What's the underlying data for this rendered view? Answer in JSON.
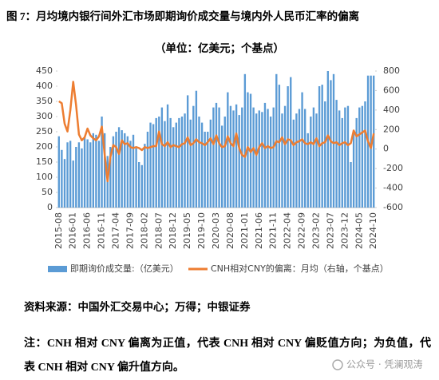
{
  "chart_data": {
    "type": "bar",
    "title": "图 7：月均境内银行间外汇市场即期询价成交量与境内外人民币汇率的偏离",
    "subtitle": "（单位：亿美元；个基点）",
    "categories": [
      "2015-08",
      null,
      null,
      null,
      null,
      "2016-01",
      null,
      null,
      null,
      null,
      "2016-06",
      null,
      null,
      null,
      null,
      "2016-11",
      null,
      null,
      null,
      null,
      "2017-04",
      null,
      null,
      null,
      null,
      "2017-09",
      null,
      null,
      null,
      null,
      "2018-02",
      null,
      null,
      null,
      null,
      "2018-07",
      null,
      null,
      null,
      null,
      "2018-12",
      null,
      null,
      null,
      null,
      "2019-05",
      null,
      null,
      null,
      null,
      "2019-10",
      null,
      null,
      null,
      null,
      "2020-03",
      null,
      null,
      null,
      null,
      "2020-08",
      null,
      null,
      null,
      null,
      "2021-01",
      null,
      null,
      null,
      null,
      "2021-06",
      null,
      null,
      null,
      null,
      "2021-11",
      null,
      null,
      null,
      null,
      "2022-04",
      null,
      null,
      null,
      null,
      "2022-09",
      null,
      null,
      null,
      null,
      "2023-02",
      null,
      null,
      null,
      null,
      "2023-07",
      null,
      null,
      null,
      null,
      "2023-12",
      null,
      null,
      null,
      null,
      "2024-05",
      null,
      null,
      null,
      null,
      "2024-10"
    ],
    "series": [
      {
        "name": "即期询价成交量:（亿美元）",
        "type": "bar",
        "color": "#5b9bd5",
        "values": [
          235,
          190,
          160,
          215,
          220,
          155,
          200,
          215,
          195,
          230,
          225,
          215,
          245,
          240,
          220,
          300,
          245,
          170,
          200,
          235,
          250,
          265,
          255,
          245,
          235,
          220,
          240,
          195,
          150,
          140,
          210,
          250,
          280,
          275,
          295,
          300,
          330,
          285,
          340,
          295,
          265,
          280,
          295,
          300,
          310,
          370,
          290,
          335,
          385,
          300,
          280,
          250,
          250,
          290,
          330,
          345,
          330,
          270,
          300,
          380,
          335,
          320,
          340,
          305,
          330,
          440,
          380,
          375,
          330,
          310,
          320,
          315,
          345,
          325,
          300,
          330,
          440,
          405,
          310,
          335,
          400,
          430,
          290,
          310,
          325,
          380,
          325,
          245,
          300,
          330,
          310,
          400,
          405,
          350,
          450,
          420,
          440,
          355,
          320,
          295,
          330,
          335,
          150,
          255,
          295,
          330,
          335,
          350,
          435,
          435,
          435
        ]
      },
      {
        "name": "CNH相对CNY的偏离：月均（右轴，个基点）",
        "type": "line",
        "axis": "y2",
        "color": "#ed7d31",
        "values": [
          490,
          470,
          260,
          180,
          400,
          690,
          450,
          150,
          90,
          120,
          210,
          140,
          110,
          90,
          130,
          230,
          -60,
          -330,
          -80,
          40,
          20,
          -50,
          90,
          50,
          60,
          20,
          10,
          20,
          10,
          -10,
          20,
          10,
          20,
          30,
          30,
          180,
          50,
          30,
          70,
          20,
          40,
          30,
          20,
          50,
          60,
          120,
          40,
          60,
          100,
          70,
          60,
          40,
          70,
          110,
          50,
          140,
          60,
          20,
          30,
          130,
          60,
          30,
          160,
          10,
          -60,
          -80,
          20,
          -30,
          10,
          -60,
          20,
          60,
          10,
          30,
          10,
          20,
          80,
          70,
          120,
          50,
          100,
          90,
          40,
          70,
          80,
          100,
          60,
          50,
          70,
          50,
          110,
          30,
          60,
          70,
          140,
          80,
          60,
          70,
          40,
          60,
          70,
          40,
          60,
          190,
          130,
          150,
          170,
          190,
          80,
          10,
          160
        ]
      }
    ],
    "ylim": [
      0,
      450
    ],
    "yticks": [
      0,
      50,
      100,
      150,
      200,
      250,
      300,
      350,
      400,
      450
    ],
    "y2lim": [
      -600,
      800
    ],
    "y2ticks": [
      -600,
      -400,
      -200,
      0,
      200,
      400,
      600,
      800
    ],
    "legend": "bottom"
  },
  "source": "资料来源：中国外汇交易中心；万得；中银证券",
  "note": "注：CNH 相对 CNY 偏离为正值，代表 CNH 相对 CNY 偏贬值方向；为负值，代表 CNH 相对 CNY 偏升值方向。",
  "watermark": "公众号 · 凭澜观涛"
}
